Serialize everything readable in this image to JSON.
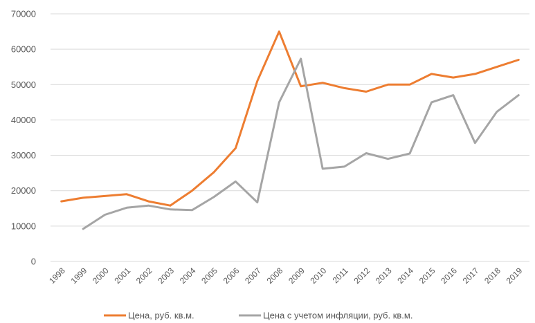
{
  "chart_data": {
    "type": "line",
    "title": "",
    "xlabel": "",
    "ylabel": "",
    "categories": [
      "1998",
      "1999",
      "2000",
      "2001",
      "2002",
      "2003",
      "2004",
      "2005",
      "2006",
      "2007",
      "2008",
      "2009",
      "2010",
      "2011",
      "2012",
      "2013",
      "2014",
      "2015",
      "2016",
      "2017",
      "2018",
      "2019"
    ],
    "ylim": [
      0,
      70000
    ],
    "yticks": [
      "0",
      "10000",
      "20000",
      "30000",
      "40000",
      "50000",
      "60000",
      "70000"
    ],
    "grid": true,
    "legend_position": "bottom",
    "series": [
      {
        "name": "Цена, руб. кв.м.",
        "color": "#ed7d31",
        "values": [
          17000,
          18000,
          18500,
          19000,
          17000,
          15800,
          20000,
          25200,
          32000,
          51000,
          65000,
          49500,
          50500,
          49000,
          48000,
          50000,
          50000,
          53000,
          52000,
          53000,
          55000,
          57000
        ]
      },
      {
        "name": "Цена с учетом инфляции, руб. кв.м.",
        "color": "#a5a5a5",
        "values": [
          null,
          9200,
          13200,
          15200,
          15800,
          14700,
          14500,
          18200,
          22600,
          16700,
          45000,
          57300,
          26200,
          26800,
          30600,
          29000,
          30500,
          45000,
          47000,
          33500,
          42300,
          47000
        ]
      }
    ]
  }
}
